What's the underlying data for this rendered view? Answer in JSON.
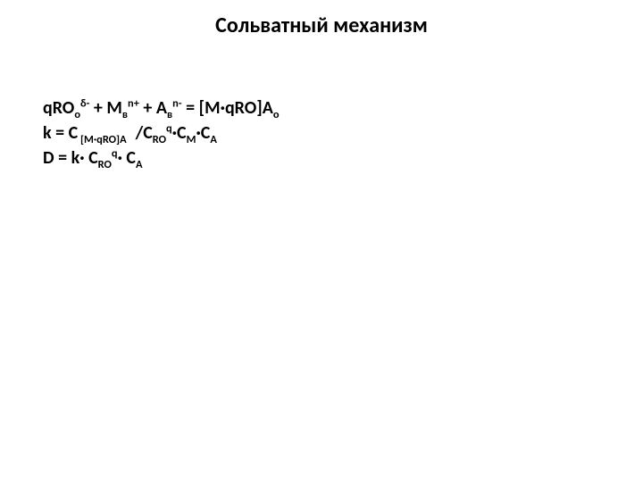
{
  "title_fontsize": 24,
  "body_fontsize": 20,
  "font_family": "Calibri",
  "text_color": "#000000",
  "background_color": "#ffffff",
  "title": "Сольватный механизм",
  "eq1": {
    "qRO": "qRO",
    "o_sub": "о",
    "delta_sup": "δ-",
    "plus1": " + ",
    "M": "M",
    "v1_sub": "в",
    "nplus_sup": "n+",
    "plus2": " + ",
    "A": "A",
    "v2_sub": "в",
    "nminus_sup": "n-",
    "equals": " = [",
    "MqRO": "M·qRO",
    "close": "]A",
    "o2_sub": "о"
  },
  "eq2": {
    "k_eq": "k = C",
    "idx_open": " [M·qRO]A",
    "slash": "/C",
    "RO_sub": "RO",
    "q_sup": "q",
    "dotC1": "·C",
    "M_sub": "M",
    "dotC2": "·C",
    "A_sub": "A"
  },
  "eq3": {
    "D_eq": "D = k· C",
    "RO_sub": "RO",
    "q_sup": "q",
    "dotC": "· C",
    "A_sub": "A"
  }
}
